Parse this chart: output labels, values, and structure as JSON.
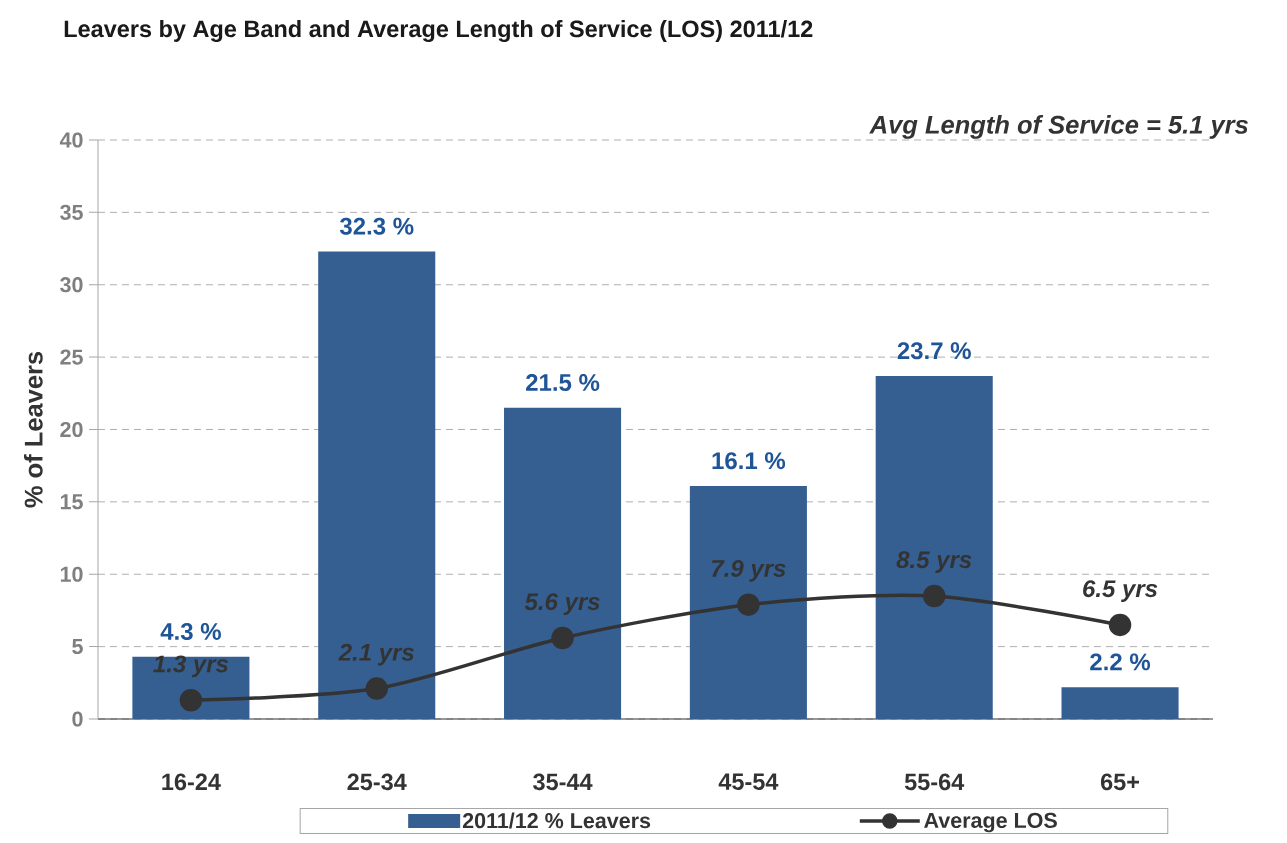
{
  "chart_data": {
    "type": "bar",
    "title": "Leavers by Age Band and Average Length of Service (LOS) 2011/12",
    "ylabel": "% of Leavers",
    "categories": [
      "16-24",
      "25-34",
      "35-44",
      "45-54",
      "55-64",
      "65+"
    ],
    "series": [
      {
        "name": "2011/12 % Leavers",
        "color": "#365f91",
        "values": [
          4.3,
          32.3,
          21.5,
          16.1,
          23.7,
          2.2
        ],
        "value_labels": [
          "4.3 %",
          "32.3 %",
          "21.5 %",
          "16.1 %",
          "23.7 %",
          "2.2 %"
        ]
      },
      {
        "name": "Average LOS",
        "type": "line",
        "color": "#333333",
        "marker": "circle",
        "line_style": "solid",
        "values": [
          1.3,
          2.1,
          5.6,
          7.9,
          8.5,
          6.5
        ],
        "value_labels": [
          "1.3 yrs",
          "2.1 yrs",
          "5.6 yrs",
          "7.9 yrs",
          "8.5 yrs",
          "6.5 yrs"
        ]
      }
    ],
    "ylim": [
      0,
      40
    ],
    "yticks": [
      0,
      5,
      10,
      15,
      20,
      25,
      30,
      35,
      40
    ],
    "grid": "y",
    "legend": "bottom",
    "annotations": [
      "Avg Length of Service = 5.1 yrs"
    ]
  }
}
